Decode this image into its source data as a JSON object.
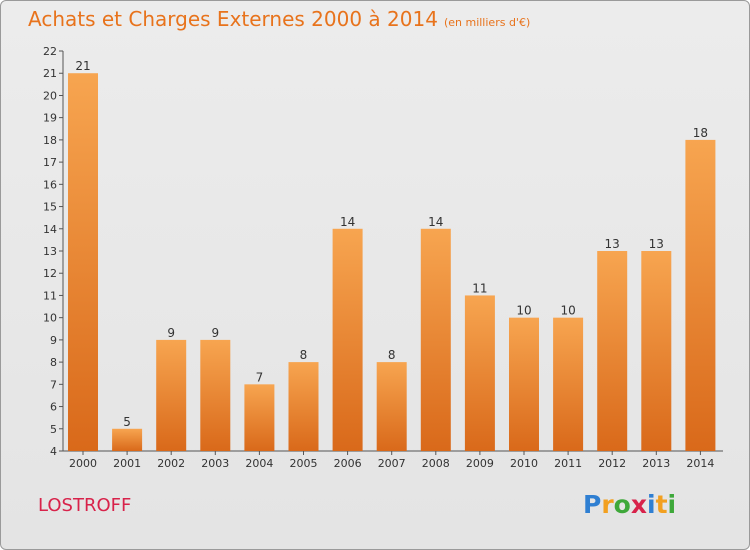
{
  "chart_data": {
    "type": "bar",
    "title": "Achats et Charges Externes 2000 à 2014",
    "subtitle": "(en milliers d'€)",
    "categories": [
      "2000",
      "2001",
      "2002",
      "2003",
      "2004",
      "2005",
      "2006",
      "2007",
      "2008",
      "2009",
      "2010",
      "2011",
      "2012",
      "2013",
      "2014"
    ],
    "values": [
      21,
      5,
      9,
      9,
      7,
      8,
      14,
      8,
      14,
      11,
      10,
      10,
      13,
      13,
      18
    ],
    "ylim": [
      4,
      22
    ],
    "yticks": [
      4,
      5,
      6,
      7,
      8,
      9,
      10,
      11,
      12,
      13,
      14,
      15,
      16,
      17,
      18,
      19,
      20,
      21,
      22
    ],
    "grid": false,
    "bar_color": "#f0923a",
    "data_labels": true
  },
  "commune": "LOSTROFF",
  "logo": {
    "letters": [
      "P",
      "r",
      "o",
      "x",
      "i",
      "t",
      "i"
    ],
    "colors": [
      "#2f7fd2",
      "#f2a020",
      "#3ea83a",
      "#d8224a",
      "#2f7fd2",
      "#f2a020",
      "#3ea83a"
    ]
  }
}
